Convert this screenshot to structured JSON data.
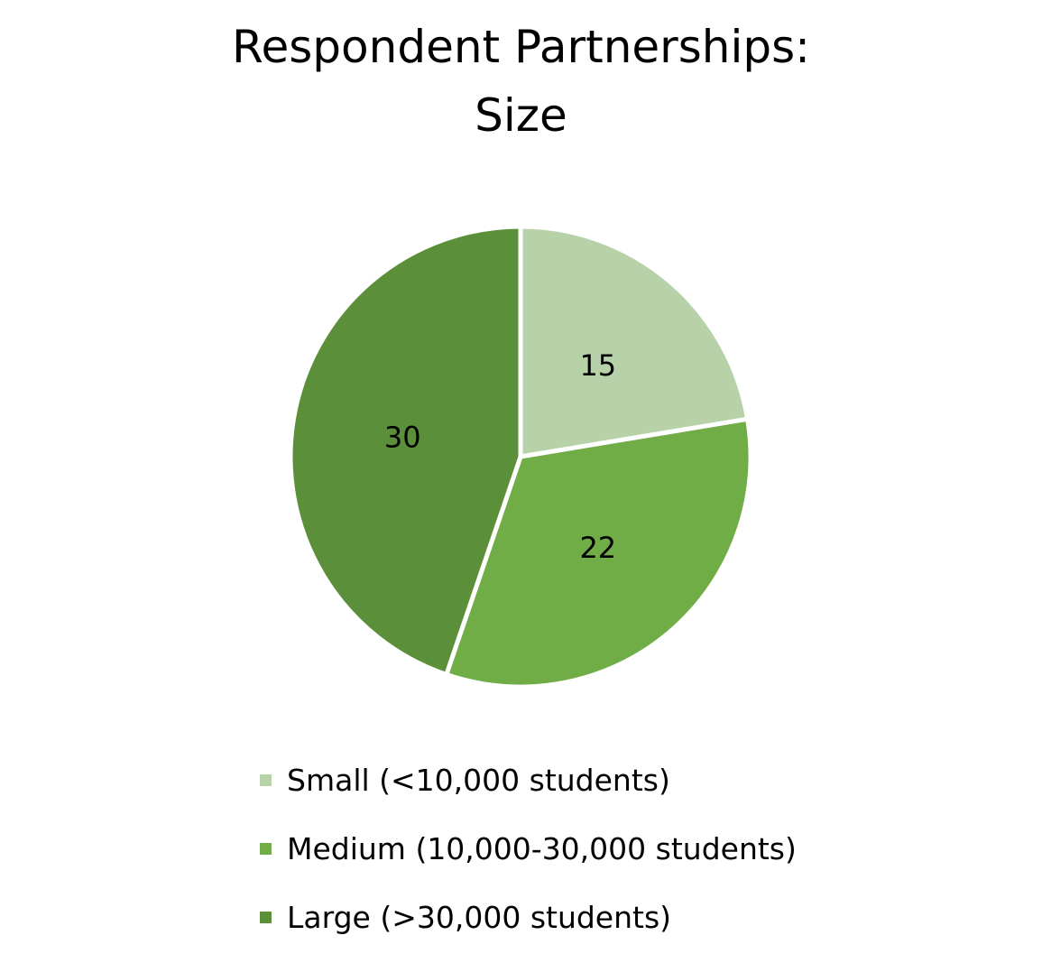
{
  "chart_data": {
    "type": "pie",
    "title": [
      "Respondent Partnerships:",
      "Size"
    ],
    "categories": [
      "Small (<10,000 students)",
      "Medium (10,000-30,000 students)",
      "Large (>30,000 students)"
    ],
    "values": [
      15,
      22,
      30
    ],
    "data_labels": [
      "15",
      "22",
      "30"
    ],
    "colors": [
      "#b7d2a9",
      "#70ad47",
      "#5b8f39"
    ],
    "start_angle": "top, clockwise",
    "legend_position": "bottom"
  }
}
